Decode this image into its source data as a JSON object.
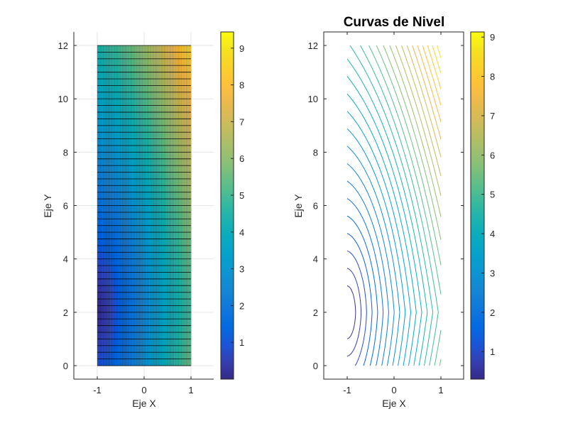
{
  "figure": {
    "background": "#ffffff",
    "colormap": "parula"
  },
  "chart_data": [
    {
      "type": "heatmap",
      "subtype": "surface (view from top, faceted)",
      "title": "",
      "xlabel": "Eje X",
      "ylabel": "Eje Y",
      "xlim": [
        -1.5,
        1.5
      ],
      "ylim": [
        -0.5,
        12.5
      ],
      "xticks": [
        "-1",
        "0",
        "1"
      ],
      "yticks": [
        "0",
        "2",
        "4",
        "6",
        "8",
        "10",
        "12"
      ],
      "grid": true,
      "domain": {
        "x": [
          -1,
          1
        ],
        "y": [
          0,
          12
        ]
      },
      "function_estimate": "z ≈ sqrt((2.5(x+1))^2 + (0.45(y-2))^2) + 0.11(x+1)|y-2|",
      "sample_values": [
        {
          "x": -1,
          "y": 2,
          "z": 0.0
        },
        {
          "x": -1,
          "y": 0,
          "z": 1.0
        },
        {
          "x": -1,
          "y": 12,
          "z": 4.5
        },
        {
          "x": 1,
          "y": 0,
          "z": 5.5
        },
        {
          "x": 1,
          "y": 2,
          "z": 5.0
        },
        {
          "x": 1,
          "y": 12,
          "z": 9.0
        }
      ],
      "colorbar": {
        "range": [
          0.0,
          9.44
        ],
        "ticks": [
          "1",
          "2",
          "3",
          "4",
          "5",
          "6",
          "7",
          "8",
          "9"
        ]
      }
    },
    {
      "type": "contour",
      "title": "Curvas de Nivel",
      "xlabel": "Eje X",
      "ylabel": "Eje Y",
      "xlim": [
        -1.5,
        1.5
      ],
      "ylim": [
        -0.5,
        12.5
      ],
      "xticks": [
        "-1",
        "0",
        "1"
      ],
      "yticks": [
        "0",
        "2",
        "4",
        "6",
        "8",
        "10",
        "12"
      ],
      "grid": false,
      "box": true,
      "levels_count": 30,
      "colorbar": {
        "range": [
          0.3,
          9.13
        ],
        "ticks": [
          "1",
          "2",
          "3",
          "4",
          "5",
          "6",
          "7",
          "8",
          "9"
        ]
      }
    }
  ]
}
